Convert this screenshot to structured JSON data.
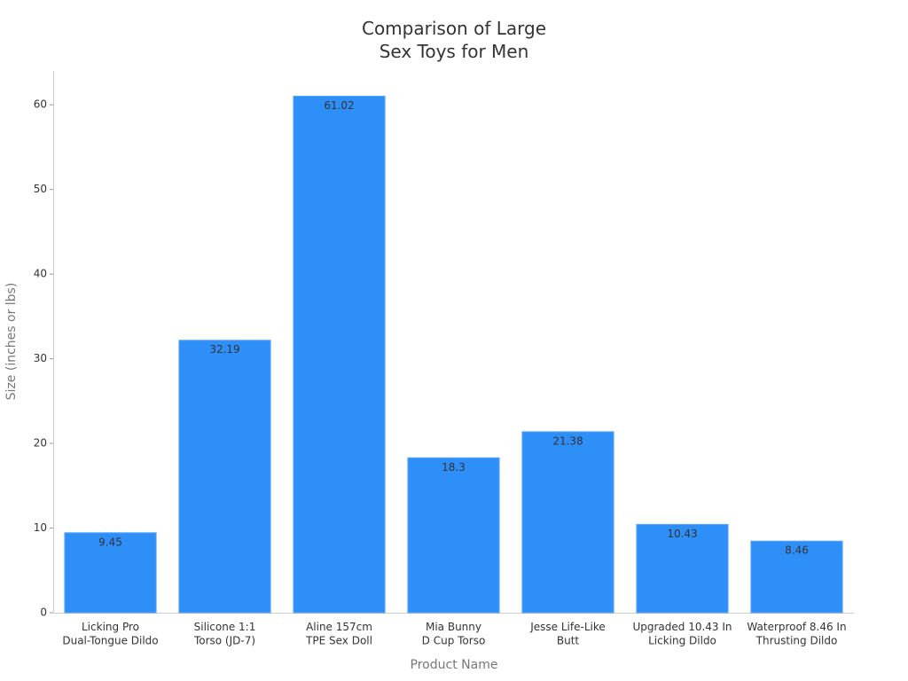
{
  "chart_data": {
    "type": "bar",
    "title": "Comparison of Large\nSex Toys for Men",
    "x_label": "Product Name",
    "y_label": "Size (inches or lbs)",
    "categories": [
      "Licking Pro\nDual-Tongue Dildo",
      "Silicone 1:1\nTorso (JD-7)",
      "Aline 157cm\nTPE Sex Doll",
      "Mia Bunny\nD Cup Torso",
      "Jesse Life-Like\nButt",
      "Upgraded 10.43 In\nLicking Dildo",
      "Waterproof 8.46 In\nThrusting Dildo"
    ],
    "values": [
      9.45,
      32.19,
      61.02,
      18.3,
      21.38,
      10.43,
      8.46
    ],
    "color": "#2f8ff8",
    "ylim": [
      0,
      64
    ],
    "yticks": [
      0,
      10,
      20,
      30,
      40,
      50,
      60
    ],
    "grid": false
  }
}
